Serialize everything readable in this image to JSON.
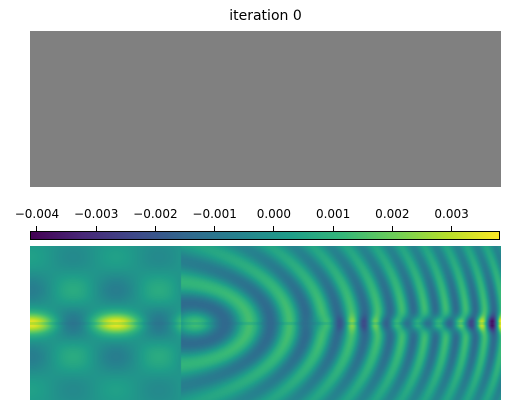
{
  "figure": {
    "title": "iteration 0"
  },
  "chart_data": [
    {
      "type": "heatmap",
      "title": "iteration 0",
      "description_values": "uniform field",
      "uniform_color": "#808080",
      "grid": false,
      "axes_visible": false
    },
    {
      "type": "heatmap",
      "title": "",
      "colormap": "viridis",
      "colorbar": {
        "orientation": "horizontal",
        "placement": "top",
        "range": [
          -0.0041,
          0.0038
        ],
        "ticks": [
          -0.004,
          -0.003,
          -0.002,
          -0.001,
          0.0,
          0.001,
          0.002,
          0.003
        ],
        "tick_labels": [
          "−0.004",
          "−0.003",
          "−0.002",
          "−0.001",
          "0.000",
          "0.001",
          "0.002",
          "0.003"
        ]
      },
      "grid": false,
      "axes_visible": false
    }
  ],
  "colors": {
    "viridis": [
      "#440154",
      "#482878",
      "#3e4989",
      "#31688e",
      "#26828e",
      "#1f9e89",
      "#35b779",
      "#6ece58",
      "#b5de2b",
      "#fde725"
    ]
  }
}
